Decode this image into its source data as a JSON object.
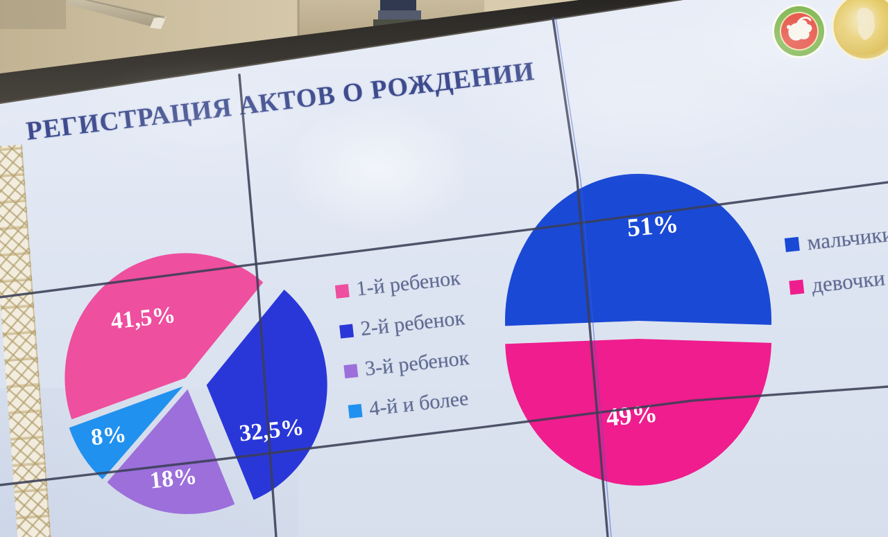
{
  "slide": {
    "title": "РЕГИСТРАЦИЯ АКТОВ О РОЖДЕНИИ",
    "logos": [
      {
        "name": "tatarstan-coat-of-arms"
      },
      {
        "name": "gold-emblem"
      }
    ]
  },
  "chart_data": [
    {
      "type": "pie",
      "legend_position": "right",
      "labels_inside": true,
      "slices": [
        {
          "label": "1-й ребенок",
          "value": 41.5,
          "display": "41,5%",
          "color": "#ee4f9e"
        },
        {
          "label": "2-й ребенок",
          "value": 32.5,
          "display": "32,5%",
          "color": "#2a37d8"
        },
        {
          "label": "3-й ребенок",
          "value": 18,
          "display": "18%",
          "color": "#9c6fdb"
        },
        {
          "label": "4-й и более",
          "value": 8,
          "display": "8%",
          "color": "#2191ef"
        }
      ]
    },
    {
      "type": "pie",
      "legend_position": "right",
      "labels_inside": true,
      "slices": [
        {
          "label": "мальчики",
          "value": 51,
          "display": "51%",
          "color": "#1a49d6"
        },
        {
          "label": "девочки",
          "value": 49,
          "display": "49%",
          "color": "#ef1d8d"
        }
      ]
    }
  ]
}
